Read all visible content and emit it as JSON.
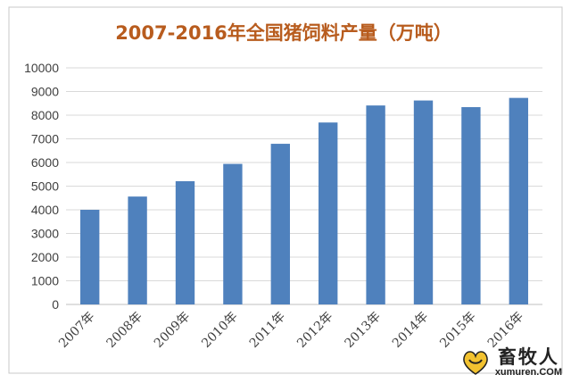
{
  "chart_data": {
    "type": "bar",
    "title": "2007-2016年全国猪饲料产量（万吨）",
    "categories": [
      "2007年",
      "2008年",
      "2009年",
      "2010年",
      "2011年",
      "2012年",
      "2013年",
      "2014年",
      "2015年",
      "2016年"
    ],
    "values": [
      4000,
      4560,
      5210,
      5940,
      6790,
      7690,
      8410,
      8620,
      8340,
      8730
    ],
    "ylim": [
      0,
      10000
    ],
    "yticks": [
      0,
      1000,
      2000,
      3000,
      4000,
      5000,
      6000,
      7000,
      8000,
      9000,
      10000
    ],
    "grid": true,
    "legend": "none"
  },
  "colors": {
    "bar": "#4F81BD",
    "title": "#B85C1E",
    "grid": "#D9D9D9",
    "axis_text": "#404040",
    "border": "#C8C8C8"
  },
  "watermark": {
    "name": "畜牧人",
    "url": "xumuren.COM",
    "icon": "heart-logo-icon"
  }
}
